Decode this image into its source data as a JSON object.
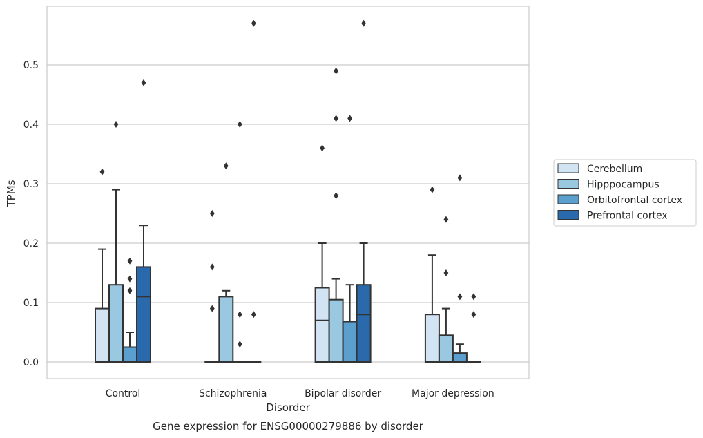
{
  "caption": "Gene expression for ENSG00000279886 by disorder",
  "chart_data": {
    "type": "box",
    "xlabel": "Disorder",
    "ylabel": "TPMs",
    "ylim": [
      -0.028,
      0.6
    ],
    "yticks": [
      "0.0",
      "0.1",
      "0.2",
      "0.3",
      "0.4",
      "0.5"
    ],
    "grid": "horizontal",
    "legend_position": "right",
    "categories": [
      "Control",
      "Schizophrenia",
      "Bipolar disorder",
      "Major depression"
    ],
    "series": [
      {
        "name": "Cerebellum",
        "color": "#d2e3f3",
        "boxes": [
          {
            "q1": 0.0,
            "median": 0.0,
            "q3": 0.09,
            "whislo": 0.0,
            "whishi": 0.19,
            "fliers": [
              0.32
            ]
          },
          {
            "q1": 0.0,
            "median": 0.0,
            "q3": 0.0,
            "whislo": 0.0,
            "whishi": 0.0,
            "fliers": [
              0.09,
              0.16,
              0.25
            ]
          },
          {
            "q1": 0.0,
            "median": 0.07,
            "q3": 0.125,
            "whislo": 0.0,
            "whishi": 0.2,
            "fliers": [
              0.36
            ]
          },
          {
            "q1": 0.0,
            "median": 0.0,
            "q3": 0.08,
            "whislo": 0.0,
            "whishi": 0.18,
            "fliers": [
              0.29
            ]
          }
        ]
      },
      {
        "name": "Hipppocampus",
        "color": "#9ac8e0",
        "boxes": [
          {
            "q1": 0.0,
            "median": 0.0,
            "q3": 0.13,
            "whislo": 0.0,
            "whishi": 0.29,
            "fliers": [
              0.4
            ]
          },
          {
            "q1": 0.0,
            "median": 0.0,
            "q3": 0.11,
            "whislo": 0.0,
            "whishi": 0.12,
            "fliers": [
              0.33
            ]
          },
          {
            "q1": 0.0,
            "median": 0.0,
            "q3": 0.105,
            "whislo": 0.0,
            "whishi": 0.14,
            "fliers": [
              0.28,
              0.41,
              0.49
            ]
          },
          {
            "q1": 0.0,
            "median": 0.0,
            "q3": 0.045,
            "whislo": 0.0,
            "whishi": 0.09,
            "fliers": [
              0.15,
              0.24
            ]
          }
        ]
      },
      {
        "name": "Orbitofrontal cortex",
        "color": "#5a9fcd",
        "boxes": [
          {
            "q1": 0.0,
            "median": 0.0,
            "q3": 0.025,
            "whislo": 0.0,
            "whishi": 0.05,
            "fliers": [
              0.12,
              0.14,
              0.17
            ]
          },
          {
            "q1": 0.0,
            "median": 0.0,
            "q3": 0.0,
            "whislo": 0.0,
            "whishi": 0.0,
            "fliers": [
              0.03,
              0.08,
              0.4
            ]
          },
          {
            "q1": 0.0,
            "median": 0.0,
            "q3": 0.068,
            "whislo": 0.0,
            "whishi": 0.13,
            "fliers": [
              0.41
            ]
          },
          {
            "q1": 0.0,
            "median": 0.0,
            "q3": 0.015,
            "whislo": 0.0,
            "whishi": 0.03,
            "fliers": [
              0.11,
              0.31
            ]
          }
        ]
      },
      {
        "name": "Prefrontal cortex",
        "color": "#2a6aac",
        "boxes": [
          {
            "q1": 0.0,
            "median": 0.11,
            "q3": 0.16,
            "whislo": 0.0,
            "whishi": 0.23,
            "fliers": [
              0.47
            ]
          },
          {
            "q1": 0.0,
            "median": 0.0,
            "q3": 0.0,
            "whislo": 0.0,
            "whishi": 0.0,
            "fliers": [
              0.08,
              0.57
            ]
          },
          {
            "q1": 0.0,
            "median": 0.08,
            "q3": 0.13,
            "whislo": 0.0,
            "whishi": 0.2,
            "fliers": [
              0.57
            ]
          },
          {
            "q1": 0.0,
            "median": 0.0,
            "q3": 0.0,
            "whislo": 0.0,
            "whishi": 0.0,
            "fliers": [
              0.08,
              0.11
            ]
          }
        ]
      }
    ]
  }
}
